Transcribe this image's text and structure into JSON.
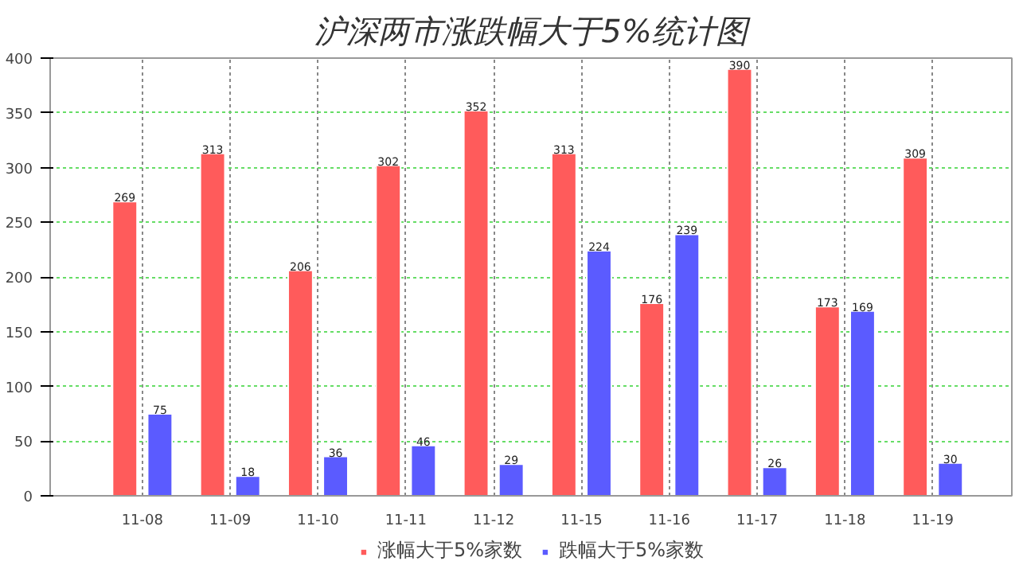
{
  "chart_data": {
    "type": "bar",
    "title": "沪深两市涨跌幅大于5%统计图",
    "categories": [
      "11-08",
      "11-09",
      "11-10",
      "11-11",
      "11-12",
      "11-15",
      "11-16",
      "11-17",
      "11-18",
      "11-19"
    ],
    "series": [
      {
        "name": "涨幅大于5%家数",
        "color": "#ff5b5b",
        "values": [
          269,
          313,
          206,
          302,
          352,
          313,
          176,
          390,
          173,
          309
        ]
      },
      {
        "name": "跌幅大于5%家数",
        "color": "#5b5bff",
        "values": [
          75,
          18,
          36,
          46,
          29,
          224,
          239,
          26,
          169,
          30
        ]
      }
    ],
    "ylim": [
      0,
      400
    ],
    "yticks": [
      0,
      50,
      100,
      150,
      200,
      250,
      300,
      350,
      400
    ],
    "grid": true,
    "legend": "bottom",
    "data_labels": true
  }
}
